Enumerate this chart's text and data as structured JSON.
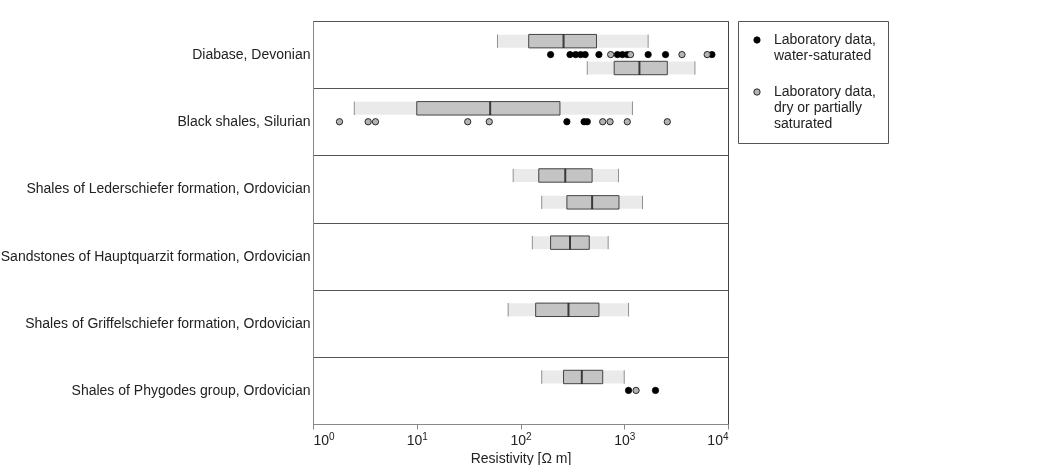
{
  "chart_data": {
    "type": "box",
    "orientation": "horizontal",
    "log": "x",
    "xlabel": "Resistivity [Ω m]",
    "grid": "y",
    "legend": "right",
    "categories": [
      "Diabase, Devonian",
      "Black shales, Silurian",
      "Shales of Lederschiefer formation, Ordovician",
      "Sandstones of Hauptquarzit formation, Ordovician",
      "Shales of Griffelschiefer formation, Ordovician",
      "Shales of Phygodes group, Ordovician"
    ],
    "xlim": [
      1,
      10000
    ],
    "xticks": [
      {
        "value": 1,
        "label": "10$^{0}$"
      },
      {
        "value": 10,
        "label": "10$^{1}$"
      },
      {
        "value": 100,
        "label": "10$^{2}$"
      },
      {
        "value": 1000,
        "label": "10$^{3}$"
      },
      {
        "value": 10000,
        "label": "10$^{4}$"
      }
    ],
    "series": [
      {
        "type": "box",
        "color": "#c4c4c4",
        "boxes": [
          {
            "low": 60,
            "q1": 120,
            "median": 260,
            "q3": 540,
            "high": 1700
          },
          {
            "low": 2.5,
            "q1": 10,
            "median": 51,
            "q3": 240,
            "high": 1200
          },
          {
            "low": 85,
            "q1": 150,
            "median": 270,
            "q3": 490,
            "high": 880
          },
          {
            "low": 130,
            "q1": 195,
            "median": 300,
            "q3": 460,
            "high": 700
          },
          {
            "low": 76,
            "q1": 140,
            "median": 290,
            "q3": 570,
            "high": 1100
          },
          {
            "low": 160,
            "q1": 260,
            "median": 390,
            "q3": 620,
            "high": 1000
          }
        ]
      },
      {
        "type": "scatter",
        "name": "Laboratory data, water-saturated",
        "color": "#000000",
        "x": [
          "Diabase, Devonian",
          "Diabase, Devonian",
          "Diabase, Devonian",
          "Diabase, Devonian",
          "Diabase, Devonian",
          "Diabase, Devonian",
          "Diabase, Devonian",
          "Diabase, Devonian",
          "Diabase, Devonian",
          "Diabase, Devonian",
          "Diabase, Devonian",
          "Diabase, Devonian",
          "Black shales, Silurian",
          "Black shales, Silurian",
          "Black shales, Silurian",
          "Shales of Phygodes group, Ordovician",
          "Shales of Phygodes group, Ordovician"
        ],
        "values": [
          195,
          300,
          340,
          380,
          420,
          570,
          860,
          960,
          1070,
          1700,
          2500,
          7000,
          280,
          410,
          440,
          1100,
          2000
        ]
      },
      {
        "type": "scatter",
        "name": "Laboratory data, dry or partially saturated",
        "color": "#b4b4b4",
        "x": [
          "Diabase, Devonian",
          "Diabase, Devonian",
          "Diabase, Devonian",
          "Diabase, Devonian",
          "Black shales, Silurian",
          "Black shales, Silurian",
          "Black shales, Silurian",
          "Black shales, Silurian",
          "Black shales, Silurian",
          "Black shales, Silurian",
          "Black shales, Silurian",
          "Black shales, Silurian",
          "Black shales, Silurian",
          "Shales of Phygodes group, Ordovician"
        ],
        "values": [
          740,
          1150,
          3600,
          6300,
          1.8,
          3.4,
          4,
          31,
          50,
          620,
          730,
          1070,
          2600,
          1300
        ]
      },
      {
        "type": "box",
        "color": "#c4c4c4",
        "boxes": [
          {
            "low": 440,
            "q1": 800,
            "median": 1400,
            "q3": 2600,
            "high": 4800
          },
          null,
          {
            "low": 160,
            "q1": 280,
            "median": 490,
            "q3": 890,
            "high": 1500
          },
          null,
          null,
          null
        ]
      }
    ]
  }
}
